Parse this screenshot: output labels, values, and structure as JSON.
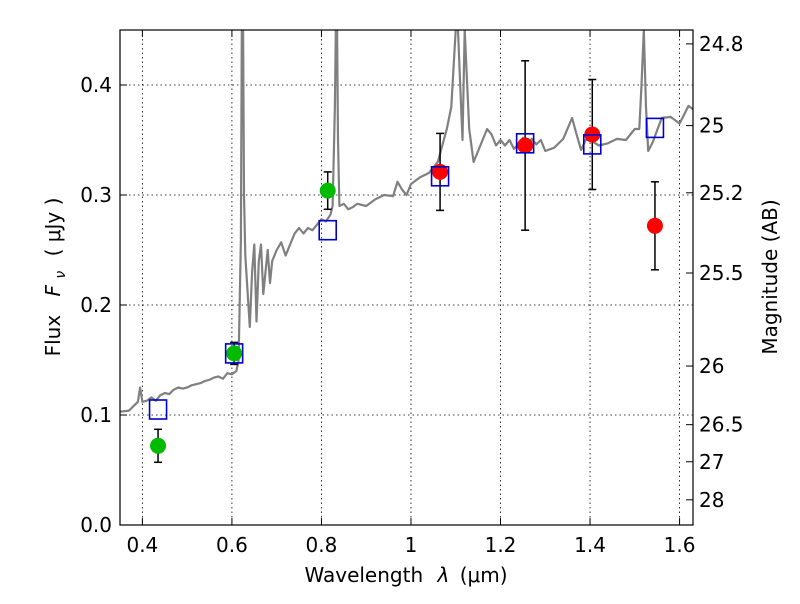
{
  "chart_data": {
    "type": "scatter",
    "xlabel_text": "Wavelength",
    "xlabel_symbol": "λ",
    "xlabel_unit": "(μm)",
    "ylabel_text": "Flux",
    "ylabel_symbol": "F",
    "ylabel_sub": "ν",
    "ylabel_unit": "( μJy )",
    "y2label": "Magnitude (AB)",
    "xlim": [
      0.35,
      1.63
    ],
    "ylim": [
      0.0,
      0.45
    ],
    "grid": true,
    "xticks": [
      {
        "value": 0.4,
        "label": "0.4"
      },
      {
        "value": 0.6,
        "label": "0.6"
      },
      {
        "value": 0.8,
        "label": "0.8"
      },
      {
        "value": 1.0,
        "label": "1"
      },
      {
        "value": 1.2,
        "label": "1.2"
      },
      {
        "value": 1.4,
        "label": "1.4"
      },
      {
        "value": 1.6,
        "label": "1.6"
      }
    ],
    "yticks": [
      {
        "value": 0.0,
        "label": "0.0"
      },
      {
        "value": 0.1,
        "label": "0.1"
      },
      {
        "value": 0.2,
        "label": "0.2"
      },
      {
        "value": 0.3,
        "label": "0.3"
      },
      {
        "value": 0.4,
        "label": "0.4"
      }
    ],
    "y2ticks": [
      {
        "flux": 0.4374,
        "label": "24.8"
      },
      {
        "flux": 0.3631,
        "label": "25"
      },
      {
        "flux": 0.302,
        "label": "25.2"
      },
      {
        "flux": 0.2291,
        "label": "25.5"
      },
      {
        "flux": 0.1445,
        "label": "26"
      },
      {
        "flux": 0.0912,
        "label": "26.5"
      },
      {
        "flux": 0.0575,
        "label": "27"
      },
      {
        "flux": 0.0229,
        "label": "28"
      }
    ],
    "colors": {
      "model": "#808080",
      "green": "#00bb00",
      "red": "#ff0000",
      "box": "#0000cc",
      "error": "#000000"
    },
    "series": [
      {
        "name": "model spectrum",
        "style": "line",
        "x": [
          0.35,
          0.37,
          0.38,
          0.39,
          0.395,
          0.4,
          0.41,
          0.42,
          0.43,
          0.44,
          0.45,
          0.46,
          0.47,
          0.48,
          0.49,
          0.5,
          0.51,
          0.52,
          0.53,
          0.54,
          0.55,
          0.56,
          0.57,
          0.58,
          0.59,
          0.6,
          0.61,
          0.615,
          0.62,
          0.622,
          0.625,
          0.627,
          0.63,
          0.64,
          0.645,
          0.65,
          0.655,
          0.66,
          0.665,
          0.67,
          0.68,
          0.685,
          0.69,
          0.7,
          0.71,
          0.72,
          0.73,
          0.74,
          0.75,
          0.76,
          0.77,
          0.78,
          0.79,
          0.8,
          0.81,
          0.82,
          0.825,
          0.83,
          0.832,
          0.835,
          0.837,
          0.84,
          0.85,
          0.86,
          0.87,
          0.88,
          0.9,
          0.92,
          0.94,
          0.96,
          0.97,
          0.98,
          0.99,
          1.0,
          1.02,
          1.04,
          1.06,
          1.08,
          1.09,
          1.1,
          1.105,
          1.11,
          1.115,
          1.12,
          1.13,
          1.14,
          1.15,
          1.16,
          1.17,
          1.18,
          1.19,
          1.2,
          1.21,
          1.22,
          1.23,
          1.24,
          1.25,
          1.26,
          1.27,
          1.28,
          1.29,
          1.3,
          1.32,
          1.34,
          1.36,
          1.37,
          1.38,
          1.39,
          1.4,
          1.42,
          1.44,
          1.46,
          1.48,
          1.5,
          1.51,
          1.515,
          1.52,
          1.525,
          1.53,
          1.54,
          1.56,
          1.58,
          1.6,
          1.62,
          1.63
        ],
        "y": [
          0.103,
          0.104,
          0.108,
          0.112,
          0.125,
          0.112,
          0.113,
          0.116,
          0.113,
          0.118,
          0.12,
          0.119,
          0.123,
          0.125,
          0.124,
          0.125,
          0.127,
          0.128,
          0.129,
          0.131,
          0.132,
          0.134,
          0.135,
          0.133,
          0.138,
          0.137,
          0.14,
          0.15,
          0.26,
          0.45,
          0.45,
          0.3,
          0.245,
          0.18,
          0.23,
          0.255,
          0.185,
          0.24,
          0.255,
          0.21,
          0.25,
          0.22,
          0.24,
          0.25,
          0.257,
          0.245,
          0.255,
          0.265,
          0.27,
          0.265,
          0.27,
          0.268,
          0.273,
          0.278,
          0.276,
          0.282,
          0.29,
          0.38,
          0.45,
          0.45,
          0.35,
          0.29,
          0.292,
          0.287,
          0.289,
          0.292,
          0.29,
          0.296,
          0.3,
          0.299,
          0.312,
          0.305,
          0.3,
          0.31,
          0.316,
          0.32,
          0.33,
          0.36,
          0.38,
          0.45,
          0.45,
          0.4,
          0.35,
          0.45,
          0.36,
          0.33,
          0.34,
          0.35,
          0.36,
          0.355,
          0.345,
          0.35,
          0.345,
          0.35,
          0.342,
          0.346,
          0.352,
          0.345,
          0.351,
          0.346,
          0.35,
          0.34,
          0.343,
          0.351,
          0.37,
          0.355,
          0.341,
          0.35,
          0.35,
          0.345,
          0.347,
          0.351,
          0.35,
          0.36,
          0.36,
          0.4,
          0.45,
          0.38,
          0.34,
          0.348,
          0.37,
          0.371,
          0.365,
          0.381,
          0.378
        ]
      },
      {
        "name": "observed (green)",
        "style": "points",
        "x": [
          0.435,
          0.605,
          0.814
        ],
        "y": [
          0.072,
          0.156,
          0.304
        ],
        "yerr": [
          0.015,
          0.01,
          0.017
        ]
      },
      {
        "name": "observed (red)",
        "style": "points",
        "x": [
          1.065,
          1.255,
          1.405,
          1.545
        ],
        "y": [
          0.321,
          0.345,
          0.355,
          0.272
        ],
        "yerr": [
          0.035,
          0.077,
          0.05,
          0.04
        ]
      },
      {
        "name": "synthetic photometry",
        "style": "squares",
        "x": [
          0.435,
          0.605,
          0.814,
          1.065,
          1.255,
          1.405,
          1.545
        ],
        "y": [
          0.105,
          0.156,
          0.268,
          0.317,
          0.347,
          0.346,
          0.361
        ]
      }
    ]
  }
}
